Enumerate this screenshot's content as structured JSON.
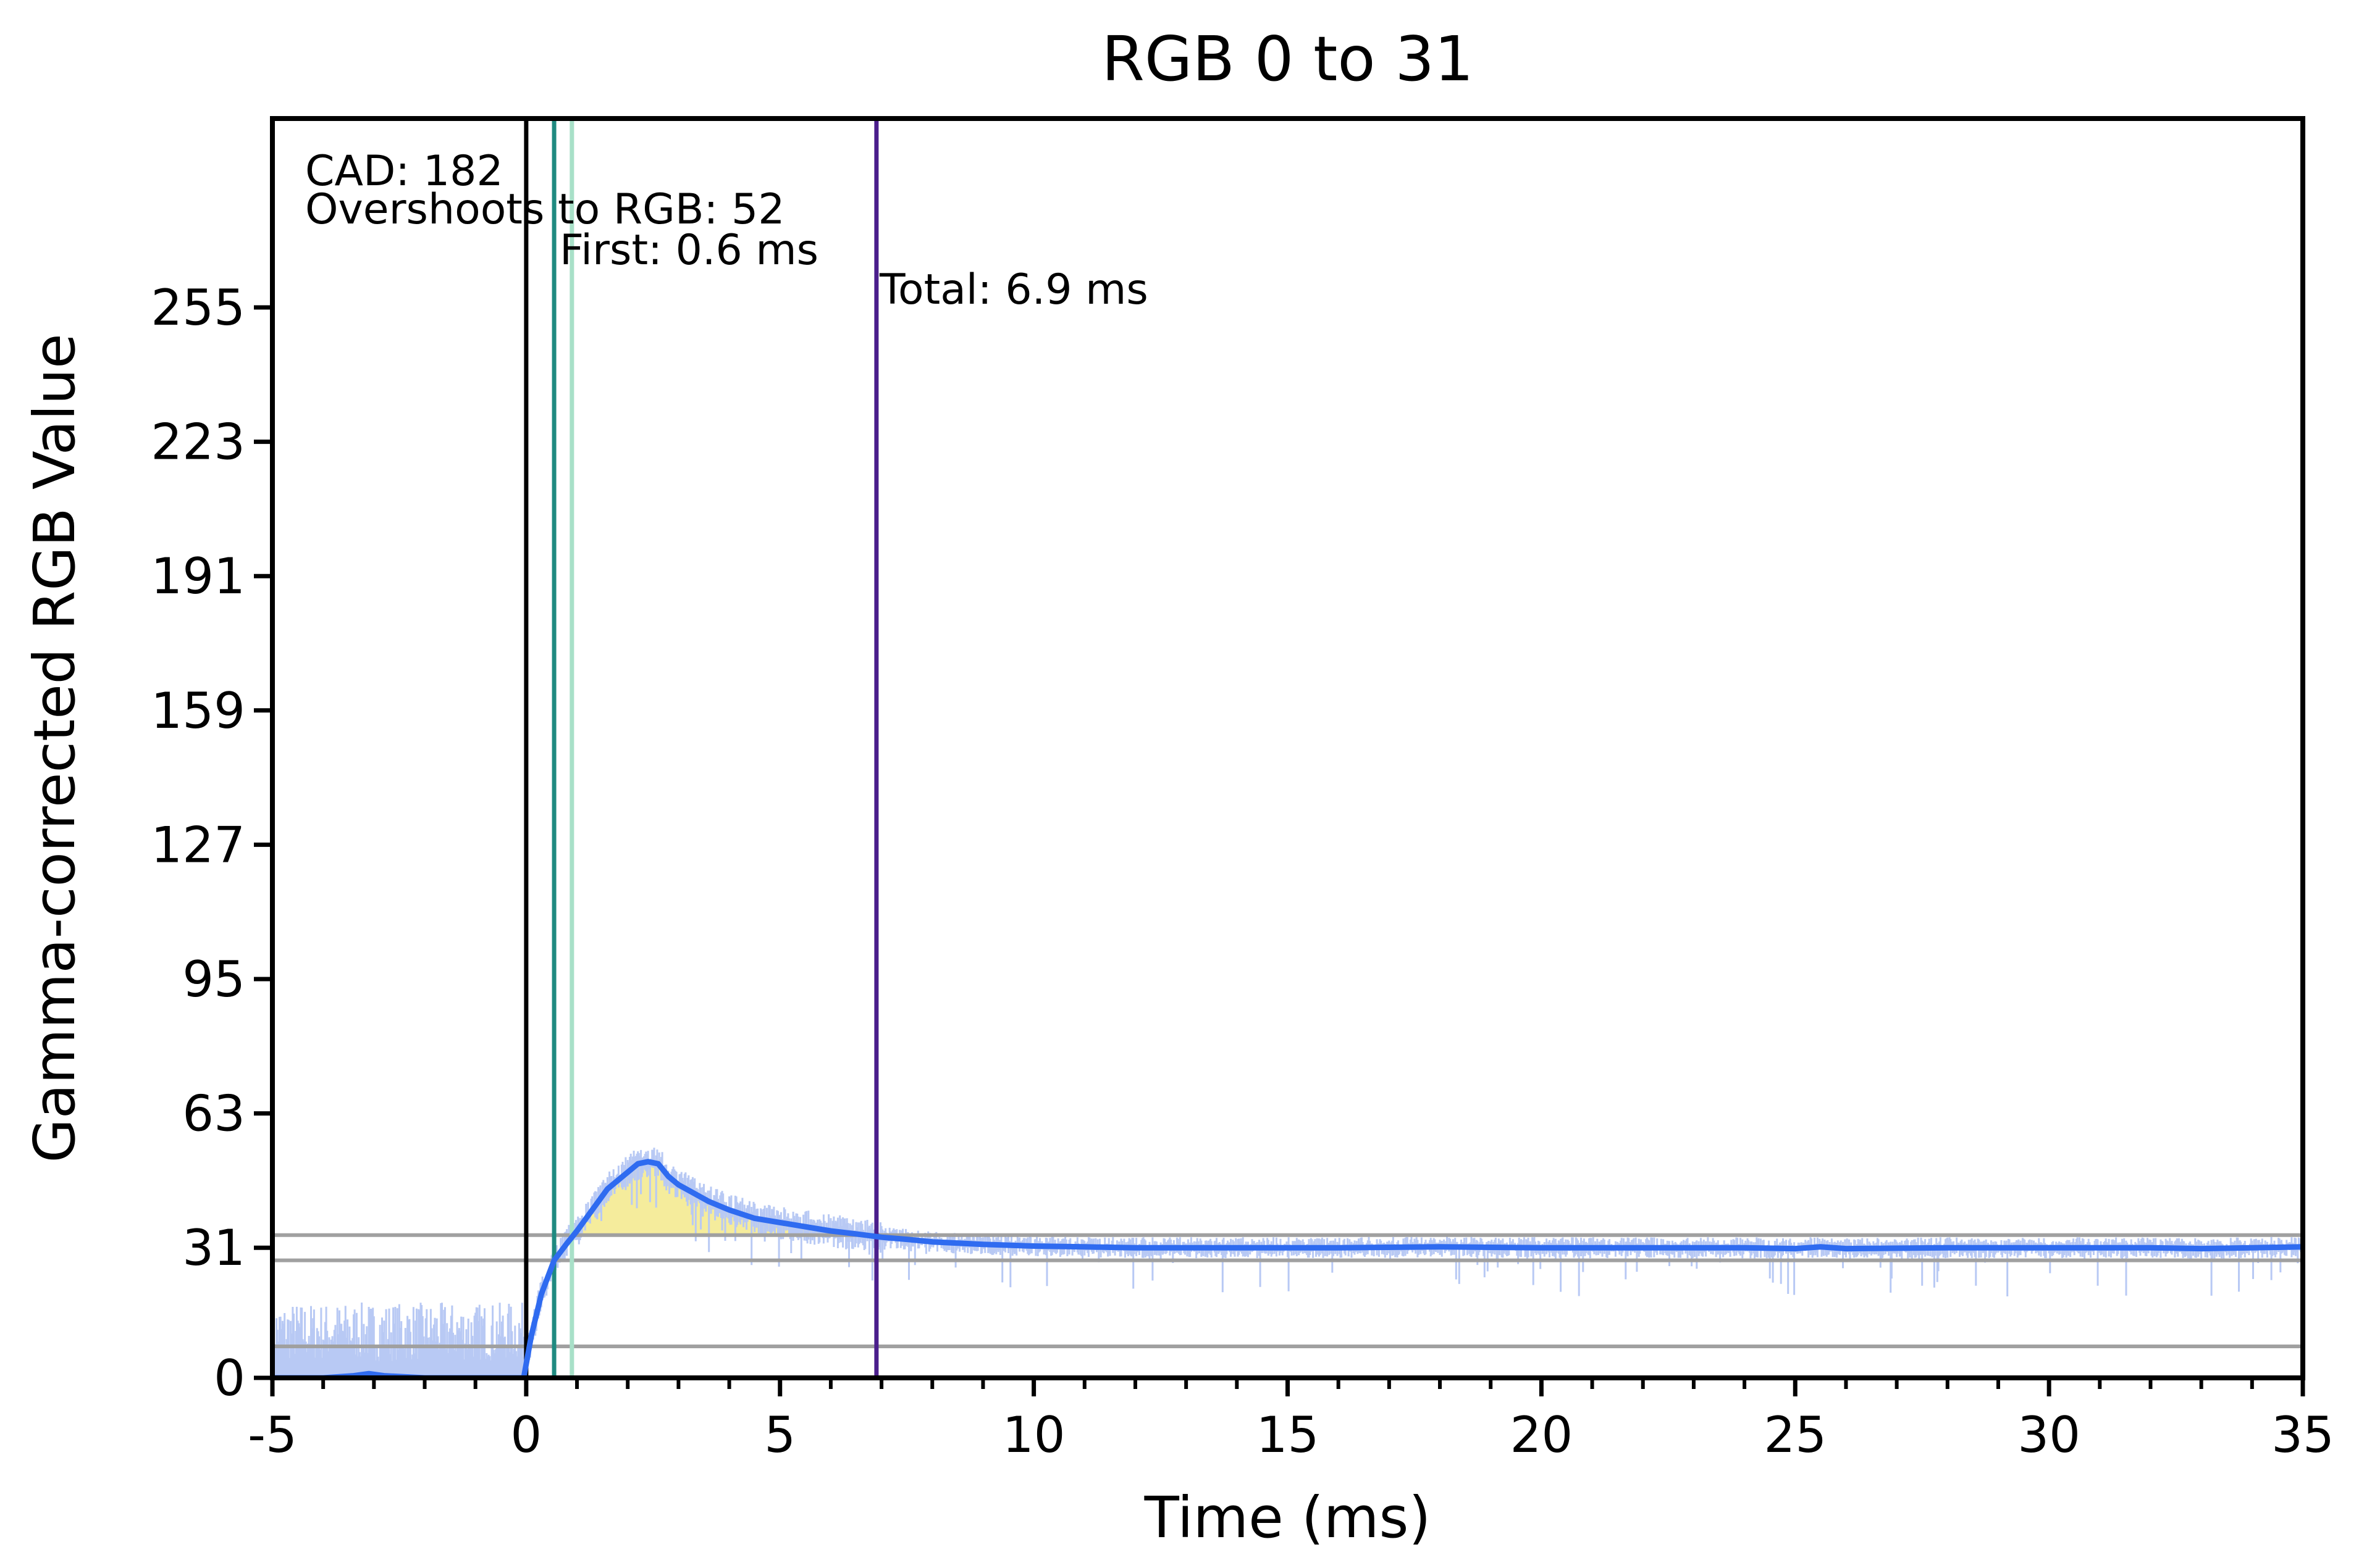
{
  "chart_data": {
    "type": "line",
    "title": "RGB 0 to 31",
    "xlabel": "Time (ms)",
    "ylabel": "Gamma-corrected RGB Value",
    "xlim": [
      -5,
      35
    ],
    "ylim": [
      0,
      300
    ],
    "xticks": [
      -5,
      0,
      5,
      10,
      15,
      20,
      25,
      30,
      35
    ],
    "xtick_labels": [
      "-5",
      "0",
      "5",
      "10",
      "15",
      "20",
      "25",
      "30",
      "35"
    ],
    "yticks": [
      0,
      31,
      63,
      95,
      127,
      159,
      191,
      223,
      255
    ],
    "ytick_labels": [
      "0",
      "31",
      "63",
      "95",
      "127",
      "159",
      "191",
      "223",
      "255"
    ],
    "grid": false,
    "legend": "none",
    "annotations": [
      {
        "text": "CAD: 182"
      },
      {
        "text": "Overshoots to RGB: 52"
      },
      {
        "text": "First: 0.6 ms"
      },
      {
        "text": "Total: 6.9 ms"
      }
    ],
    "vertical_markers": [
      {
        "x": 0,
        "color": "#000000",
        "role": "transition-start"
      },
      {
        "x": 0.55,
        "color": "#1f8a80",
        "role": "first"
      },
      {
        "x": 0.9,
        "color": "#a8e0c8",
        "role": "first-band"
      },
      {
        "x": 6.9,
        "color": "#4b1e8c",
        "role": "total"
      }
    ],
    "horizontal_markers": [
      {
        "y": 7.5,
        "color": "#a0a0a0"
      },
      {
        "y": 28,
        "color": "#a0a0a0"
      },
      {
        "y": 34,
        "color": "#a0a0a0"
      }
    ],
    "overshoot_fill": {
      "color": "#f5ec9c",
      "x_range": [
        0.7,
        6.9
      ],
      "baseline": 34
    },
    "series": [
      {
        "color": "#2f6bf0",
        "x": [
          -5,
          -4,
          -3.4,
          -3.1,
          -2.8,
          -2,
          -1,
          -0.05,
          0.1,
          0.3,
          0.55,
          0.8,
          1,
          1.3,
          1.6,
          1.9,
          2.2,
          2.4,
          2.6,
          2.8,
          3,
          3.3,
          3.6,
          4,
          4.5,
          5,
          5.5,
          6,
          6.5,
          7,
          7.5,
          8,
          9,
          10,
          11,
          12,
          14,
          16,
          18,
          20,
          22,
          24,
          25,
          25.5,
          26,
          28,
          30,
          32,
          33,
          34,
          35
        ],
        "y": [
          0,
          0,
          0.5,
          1,
          0.5,
          0,
          0,
          0,
          10,
          20,
          28,
          32,
          35,
          40,
          45,
          48,
          51,
          51.5,
          51,
          48,
          46,
          44,
          42,
          40,
          38,
          37,
          36,
          35,
          34.3,
          33.5,
          33,
          32.4,
          31.8,
          31.4,
          31.2,
          31,
          31,
          31,
          31.2,
          31,
          31,
          31,
          30.8,
          31.2,
          30.8,
          31,
          31,
          31,
          30.8,
          31,
          31.2
        ]
      }
    ],
    "raw_noise": {
      "color": "#b8c9f4",
      "segments": [
        {
          "x_range": [
            -5,
            0
          ],
          "low": 0,
          "high": 18
        },
        {
          "x_range": [
            0,
            2.5
          ],
          "low": 10,
          "high": 52
        },
        {
          "x_range": [
            2.5,
            7
          ],
          "low": 32,
          "high": 54
        },
        {
          "x_range": [
            7,
            35
          ],
          "low": 20,
          "high": 36
        }
      ]
    }
  }
}
